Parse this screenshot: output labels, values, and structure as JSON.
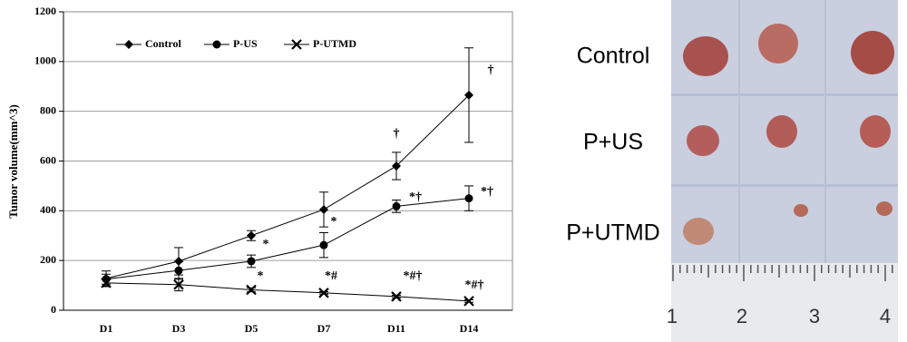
{
  "chart_data": {
    "type": "line",
    "y_label": "Tumor volume(mm^3)",
    "categories": [
      "D1",
      "D3",
      "D5",
      "D7",
      "D11",
      "D14"
    ],
    "series": [
      {
        "name": "Control",
        "color": "#000000",
        "marker": "diamond",
        "values": [
          128,
          197,
          300,
          405,
          580,
          865
        ],
        "errors": [
          30,
          55,
          20,
          70,
          55,
          190
        ]
      },
      {
        "name": "P-US",
        "color": "#000000",
        "marker": "circle",
        "values": [
          125,
          160,
          197,
          262,
          418,
          450
        ],
        "errors": [
          20,
          35,
          25,
          50,
          25,
          50
        ]
      },
      {
        "name": "P-UTMD",
        "color": "#000000",
        "marker": "x",
        "values": [
          110,
          103,
          82,
          70,
          55,
          37
        ],
        "errors": [
          15,
          25,
          8,
          5,
          5,
          5
        ]
      }
    ],
    "ylim": [
      0,
      1200
    ],
    "yticks": [
      0,
      200,
      400,
      600,
      800,
      1000,
      1200
    ],
    "grid": true,
    "annotations": [
      "†",
      "†",
      "*",
      "*",
      "*",
      "*#",
      "*#†",
      "*#†",
      "*†",
      "*†"
    ]
  },
  "photo": {
    "row_labels": [
      "Control",
      "P+US",
      "P+UTMD"
    ],
    "ruler_labels": [
      "1",
      "2",
      "3",
      "4"
    ]
  }
}
